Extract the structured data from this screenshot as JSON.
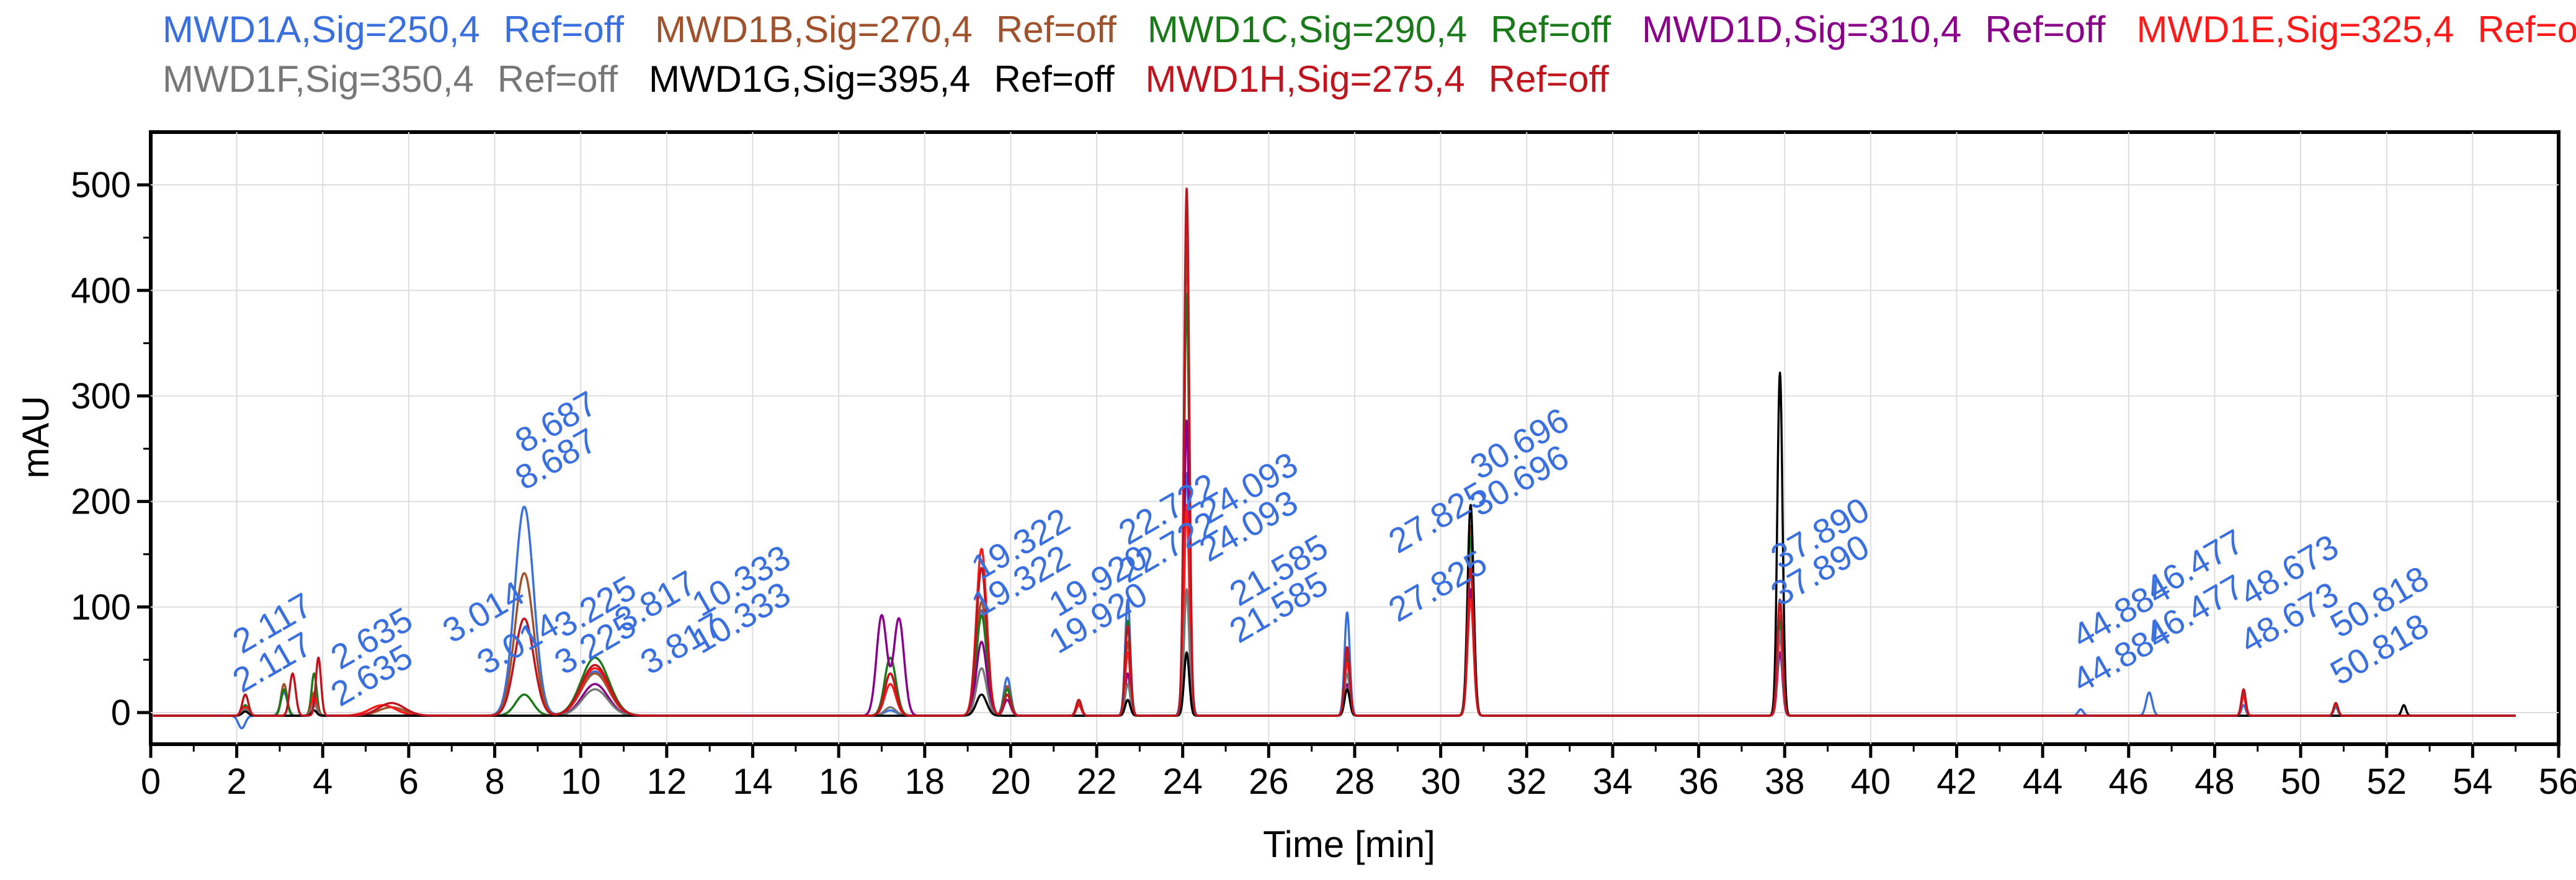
{
  "chart_data": {
    "type": "line",
    "title": "",
    "xlabel": "Time [min]",
    "ylabel": "mAU",
    "xlim": [
      0,
      56
    ],
    "ylim": [
      -30,
      550
    ],
    "grid": true,
    "x_ticks": [
      0,
      2,
      4,
      6,
      8,
      10,
      12,
      14,
      16,
      18,
      20,
      22,
      24,
      26,
      28,
      30,
      32,
      34,
      36,
      38,
      40,
      42,
      44,
      46,
      48,
      50,
      52,
      54,
      56
    ],
    "y_ticks": [
      0,
      100,
      200,
      300,
      400,
      500
    ],
    "legend": [
      {
        "name": "MWD1A,Sig=250,4",
        "ref": "Ref=off",
        "color": "#3a6fe0"
      },
      {
        "name": "MWD1B,Sig=270,4",
        "ref": "Ref=off",
        "color": "#a0522d"
      },
      {
        "name": "MWD1C,Sig=290,4",
        "ref": "Ref=off",
        "color": "#1a7a1a"
      },
      {
        "name": "MWD1D,Sig=310,4",
        "ref": "Ref=off",
        "color": "#8b008b"
      },
      {
        "name": "MWD1E,Sig=325,4",
        "ref": "Ref=off",
        "color": "#ff1a1a"
      },
      {
        "name": "MWD1F,Sig=350,4",
        "ref": "Ref=off",
        "color": "#777777"
      },
      {
        "name": "MWD1G,Sig=395,4",
        "ref": "Ref=off",
        "color": "#000000"
      },
      {
        "name": "MWD1H,Sig=275,4",
        "ref": "Ref=off",
        "color": "#c0141e"
      }
    ],
    "peak_labels": [
      {
        "text": "2.117",
        "x": 2.117,
        "y": 55
      },
      {
        "text": "2.117",
        "x": 2.117,
        "y": 18
      },
      {
        "text": "2.635",
        "x": 4.4,
        "y": 40
      },
      {
        "text": "2.635",
        "x": 4.4,
        "y": 5
      },
      {
        "text": "3.014",
        "x": 7.0,
        "y": 65
      },
      {
        "text": "3.014",
        "x": 7.8,
        "y": 35
      },
      {
        "text": "8.687",
        "x": 8.687,
        "y": 245
      },
      {
        "text": "8.687",
        "x": 8.687,
        "y": 210
      },
      {
        "text": "3.225",
        "x": 9.6,
        "y": 70
      },
      {
        "text": "3.225",
        "x": 9.6,
        "y": 35
      },
      {
        "text": "3.817",
        "x": 11.0,
        "y": 75
      },
      {
        "text": "3.817",
        "x": 11.6,
        "y": 35
      },
      {
        "text": "10.333",
        "x": 12.8,
        "y": 90
      },
      {
        "text": "10.333",
        "x": 12.8,
        "y": 55
      },
      {
        "text": "19.322",
        "x": 19.3,
        "y": 125
      },
      {
        "text": "19.322",
        "x": 19.3,
        "y": 90
      },
      {
        "text": "19.920",
        "x": 21.1,
        "y": 90
      },
      {
        "text": "19.920",
        "x": 21.1,
        "y": 55
      },
      {
        "text": "22.722",
        "x": 22.722,
        "y": 158
      },
      {
        "text": "22.722",
        "x": 22.722,
        "y": 122
      },
      {
        "text": "24.093",
        "x": 24.6,
        "y": 178
      },
      {
        "text": "24.093",
        "x": 24.6,
        "y": 142
      },
      {
        "text": "21.585",
        "x": 25.3,
        "y": 100
      },
      {
        "text": "21.585",
        "x": 25.3,
        "y": 65
      },
      {
        "text": "27.825",
        "x": 29.0,
        "y": 150
      },
      {
        "text": "27.825",
        "x": 29.0,
        "y": 85
      },
      {
        "text": "30.696",
        "x": 30.9,
        "y": 220
      },
      {
        "text": "30.696",
        "x": 30.9,
        "y": 185
      },
      {
        "text": "37.890",
        "x": 37.89,
        "y": 135
      },
      {
        "text": "37.890",
        "x": 37.89,
        "y": 100
      },
      {
        "text": "44.884",
        "x": 44.9,
        "y": 60
      },
      {
        "text": "44.884",
        "x": 44.9,
        "y": 18
      },
      {
        "text": "46.477",
        "x": 46.6,
        "y": 105
      },
      {
        "text": "46.477",
        "x": 46.6,
        "y": 62
      },
      {
        "text": "48.673",
        "x": 48.8,
        "y": 100
      },
      {
        "text": "48.673",
        "x": 48.8,
        "y": 55
      },
      {
        "text": "50.818",
        "x": 50.9,
        "y": 70
      },
      {
        "text": "50.818",
        "x": 50.9,
        "y": 25
      }
    ],
    "series": [
      {
        "name": "MWD1A",
        "color": "#3a6fe0",
        "peaks": [
          [
            2.117,
            -12,
            0.08
          ],
          [
            3.1,
            22,
            0.08
          ],
          [
            3.8,
            10,
            0.08
          ],
          [
            8.687,
            198,
            0.22
          ],
          [
            10.333,
            42,
            0.32
          ],
          [
            17.2,
            5,
            0.14
          ],
          [
            19.322,
            100,
            0.12
          ],
          [
            19.92,
            36,
            0.08
          ],
          [
            21.585,
            10,
            0.06
          ],
          [
            22.722,
            110,
            0.06
          ],
          [
            24.093,
            230,
            0.07
          ],
          [
            27.825,
            98,
            0.06
          ],
          [
            30.696,
            150,
            0.07
          ],
          [
            37.89,
            110,
            0.06
          ],
          [
            44.884,
            6,
            0.06
          ],
          [
            46.477,
            22,
            0.07
          ],
          [
            48.673,
            10,
            0.05
          ],
          [
            50.818,
            8,
            0.05
          ]
        ]
      },
      {
        "name": "MWD1B",
        "color": "#a0522d",
        "peaks": [
          [
            2.2,
            8,
            0.07
          ],
          [
            3.1,
            30,
            0.07
          ],
          [
            3.8,
            22,
            0.06
          ],
          [
            5.6,
            8,
            0.3
          ],
          [
            8.687,
            135,
            0.22
          ],
          [
            10.333,
            40,
            0.32
          ],
          [
            17.2,
            40,
            0.13
          ],
          [
            19.322,
            108,
            0.12
          ],
          [
            19.92,
            28,
            0.08
          ],
          [
            21.585,
            12,
            0.06
          ],
          [
            22.722,
            70,
            0.06
          ],
          [
            24.093,
            450,
            0.06
          ],
          [
            27.825,
            60,
            0.06
          ],
          [
            30.696,
            180,
            0.07
          ],
          [
            37.89,
            95,
            0.06
          ],
          [
            48.673,
            20,
            0.05
          ],
          [
            50.818,
            10,
            0.05
          ]
        ]
      },
      {
        "name": "MWD1C",
        "color": "#1a7a1a",
        "peaks": [
          [
            2.2,
            10,
            0.07
          ],
          [
            3.1,
            25,
            0.07
          ],
          [
            3.8,
            40,
            0.06
          ],
          [
            8.687,
            20,
            0.2
          ],
          [
            10.333,
            55,
            0.32
          ],
          [
            17.2,
            55,
            0.13
          ],
          [
            19.322,
            95,
            0.12
          ],
          [
            19.92,
            25,
            0.08
          ],
          [
            21.585,
            15,
            0.06
          ],
          [
            22.722,
            90,
            0.06
          ],
          [
            24.093,
            400,
            0.06
          ],
          [
            27.825,
            55,
            0.06
          ],
          [
            30.696,
            170,
            0.07
          ],
          [
            37.89,
            90,
            0.06
          ],
          [
            48.673,
            20,
            0.05
          ],
          [
            50.818,
            12,
            0.05
          ]
        ]
      },
      {
        "name": "MWD1D",
        "color": "#8b008b",
        "peaks": [
          [
            2.2,
            5,
            0.07
          ],
          [
            3.8,
            15,
            0.06
          ],
          [
            10.333,
            30,
            0.3
          ],
          [
            17.0,
            95,
            0.12
          ],
          [
            17.4,
            92,
            0.12
          ],
          [
            19.322,
            70,
            0.12
          ],
          [
            19.92,
            15,
            0.08
          ],
          [
            22.722,
            40,
            0.06
          ],
          [
            24.093,
            280,
            0.06
          ],
          [
            27.825,
            30,
            0.06
          ],
          [
            30.696,
            120,
            0.07
          ],
          [
            37.89,
            60,
            0.06
          ]
        ]
      },
      {
        "name": "MWD1E",
        "color": "#ff1a1a",
        "peaks": [
          [
            2.2,
            8,
            0.07
          ],
          [
            3.8,
            20,
            0.06
          ],
          [
            5.4,
            10,
            0.3
          ],
          [
            10.333,
            45,
            0.32
          ],
          [
            17.2,
            30,
            0.13
          ],
          [
            19.322,
            158,
            0.12
          ],
          [
            19.92,
            20,
            0.08
          ],
          [
            21.585,
            10,
            0.06
          ],
          [
            22.722,
            60,
            0.06
          ],
          [
            24.093,
            200,
            0.06
          ],
          [
            27.825,
            50,
            0.06
          ],
          [
            30.696,
            110,
            0.07
          ],
          [
            37.89,
            75,
            0.06
          ],
          [
            48.673,
            18,
            0.05
          ]
        ]
      },
      {
        "name": "MWD1F",
        "color": "#777777",
        "peaks": [
          [
            2.2,
            6,
            0.07
          ],
          [
            3.8,
            12,
            0.06
          ],
          [
            10.333,
            25,
            0.3
          ],
          [
            17.2,
            8,
            0.13
          ],
          [
            19.322,
            45,
            0.12
          ],
          [
            22.722,
            30,
            0.06
          ],
          [
            24.093,
            120,
            0.06
          ],
          [
            27.825,
            40,
            0.06
          ],
          [
            30.696,
            150,
            0.07
          ],
          [
            37.89,
            80,
            0.06
          ]
        ]
      },
      {
        "name": "MWD1G",
        "color": "#000000",
        "peaks": [
          [
            2.2,
            4,
            0.07
          ],
          [
            3.8,
            5,
            0.06
          ],
          [
            19.322,
            20,
            0.12
          ],
          [
            22.722,
            15,
            0.06
          ],
          [
            24.093,
            60,
            0.06
          ],
          [
            27.825,
            25,
            0.06
          ],
          [
            30.696,
            200,
            0.07
          ],
          [
            37.89,
            325,
            0.06
          ],
          [
            52.4,
            10,
            0.05
          ]
        ]
      },
      {
        "name": "MWD1H",
        "color": "#c0141e",
        "peaks": [
          [
            2.2,
            20,
            0.07
          ],
          [
            3.3,
            40,
            0.07
          ],
          [
            3.9,
            55,
            0.06
          ],
          [
            5.6,
            12,
            0.3
          ],
          [
            8.687,
            92,
            0.22
          ],
          [
            10.333,
            48,
            0.32
          ],
          [
            17.2,
            40,
            0.13
          ],
          [
            19.322,
            140,
            0.12
          ],
          [
            19.92,
            20,
            0.08
          ],
          [
            21.585,
            15,
            0.06
          ],
          [
            22.722,
            85,
            0.06
          ],
          [
            24.093,
            500,
            0.06
          ],
          [
            27.825,
            65,
            0.06
          ],
          [
            30.696,
            140,
            0.07
          ],
          [
            37.89,
            110,
            0.06
          ],
          [
            48.673,
            25,
            0.05
          ],
          [
            50.818,
            12,
            0.05
          ]
        ]
      }
    ]
  }
}
